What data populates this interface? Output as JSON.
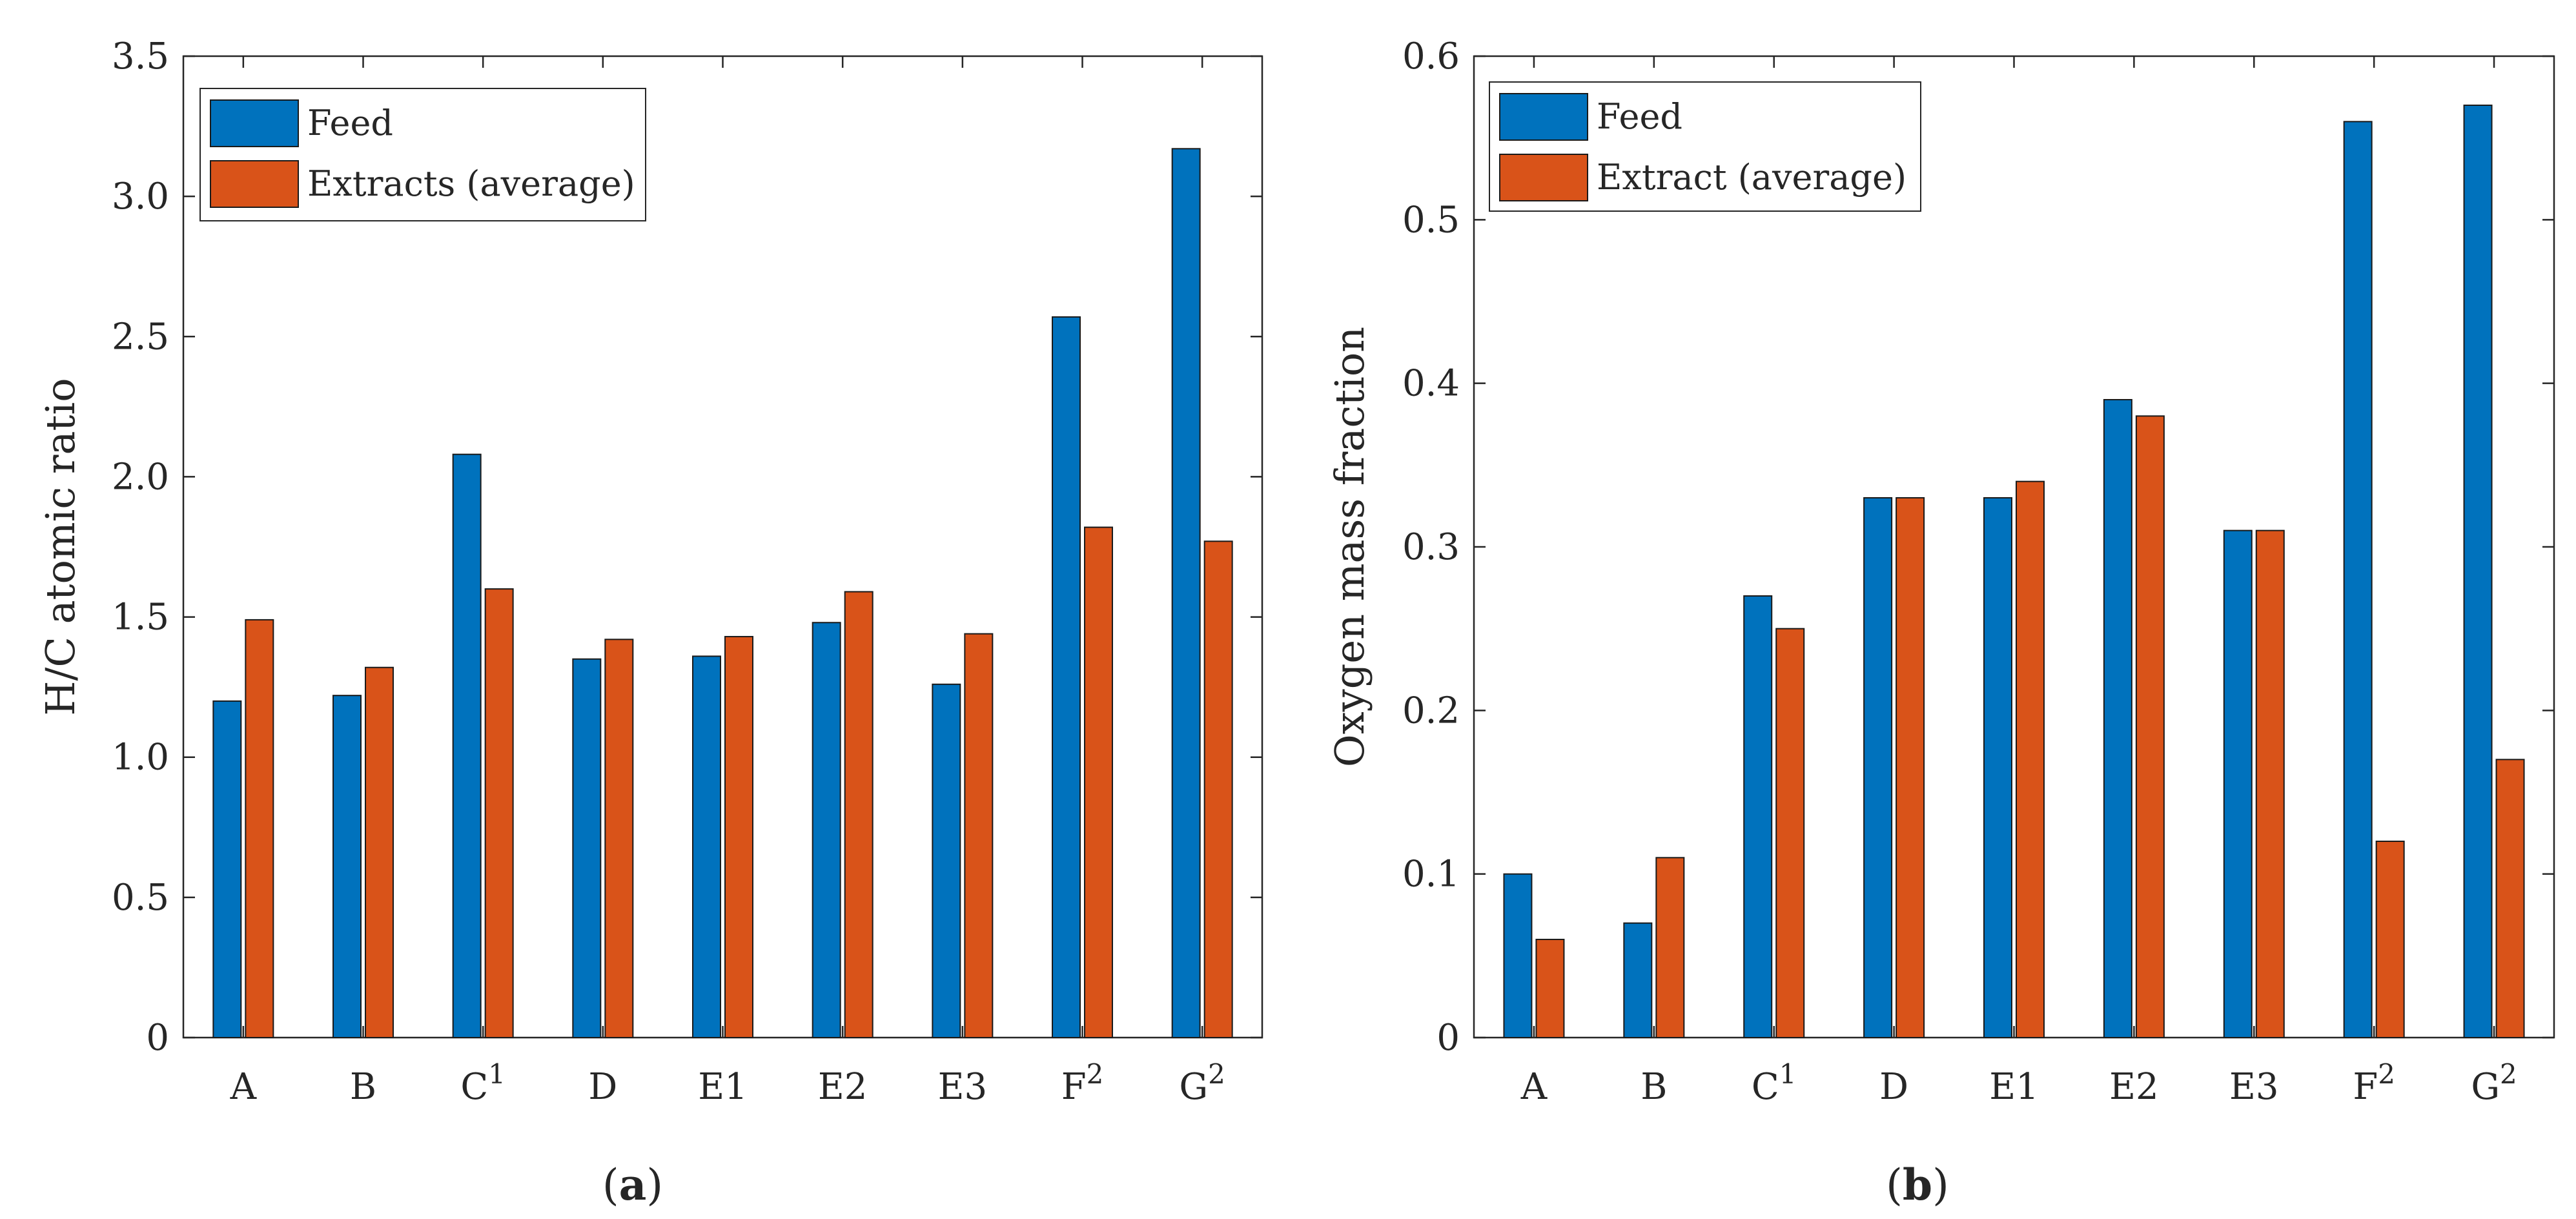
{
  "colors": {
    "feed": "#0072BD",
    "extract": "#D95319",
    "axis": "#262626"
  },
  "chart_data": [
    {
      "type": "bar",
      "panel_label": "a",
      "title": "",
      "xlabel": "",
      "ylabel": "H/C atomic ratio",
      "ylim": [
        0,
        3.5
      ],
      "yticks": [
        {
          "value": 0,
          "label": "0"
        },
        {
          "value": 0.5,
          "label": "0.5"
        },
        {
          "value": 1.0,
          "label": "1.0"
        },
        {
          "value": 1.5,
          "label": "1.5"
        },
        {
          "value": 2.0,
          "label": "2.0"
        },
        {
          "value": 2.5,
          "label": "2.5"
        },
        {
          "value": 3.0,
          "label": "3.0"
        },
        {
          "value": 3.5,
          "label": "3.5"
        }
      ],
      "categories": [
        {
          "base": "A",
          "sup": ""
        },
        {
          "base": "B",
          "sup": ""
        },
        {
          "base": "C",
          "sup": "1"
        },
        {
          "base": "D",
          "sup": ""
        },
        {
          "base": "E1",
          "sup": ""
        },
        {
          "base": "E2",
          "sup": ""
        },
        {
          "base": "E3",
          "sup": ""
        },
        {
          "base": "F",
          "sup": "2"
        },
        {
          "base": "G",
          "sup": "2"
        }
      ],
      "series": [
        {
          "name": "Feed",
          "values": [
            1.2,
            1.22,
            2.08,
            1.35,
            1.36,
            1.48,
            1.26,
            2.57,
            3.17
          ]
        },
        {
          "name": "Extracts (average)",
          "values": [
            1.49,
            1.32,
            1.6,
            1.42,
            1.43,
            1.59,
            1.44,
            1.82,
            1.77
          ]
        }
      ],
      "legend_location": "top-left"
    },
    {
      "type": "bar",
      "panel_label": "b",
      "title": "",
      "xlabel": "",
      "ylabel": "Oxygen mass fraction",
      "ylim": [
        0,
        0.6
      ],
      "yticks": [
        {
          "value": 0,
          "label": "0"
        },
        {
          "value": 0.1,
          "label": "0.1"
        },
        {
          "value": 0.2,
          "label": "0.2"
        },
        {
          "value": 0.3,
          "label": "0.3"
        },
        {
          "value": 0.4,
          "label": "0.4"
        },
        {
          "value": 0.5,
          "label": "0.5"
        },
        {
          "value": 0.6,
          "label": "0.6"
        }
      ],
      "categories": [
        {
          "base": "A",
          "sup": ""
        },
        {
          "base": "B",
          "sup": ""
        },
        {
          "base": "C",
          "sup": "1"
        },
        {
          "base": "D",
          "sup": ""
        },
        {
          "base": "E1",
          "sup": ""
        },
        {
          "base": "E2",
          "sup": ""
        },
        {
          "base": "E3",
          "sup": ""
        },
        {
          "base": "F",
          "sup": "2"
        },
        {
          "base": "G",
          "sup": "2"
        }
      ],
      "series": [
        {
          "name": "Feed",
          "values": [
            0.1,
            0.07,
            0.27,
            0.33,
            0.33,
            0.39,
            0.31,
            0.56,
            0.57
          ]
        },
        {
          "name": "Extract (average)",
          "values": [
            0.06,
            0.11,
            0.25,
            0.33,
            0.34,
            0.38,
            0.31,
            0.12,
            0.17
          ]
        }
      ],
      "legend_location": "top-left"
    }
  ]
}
